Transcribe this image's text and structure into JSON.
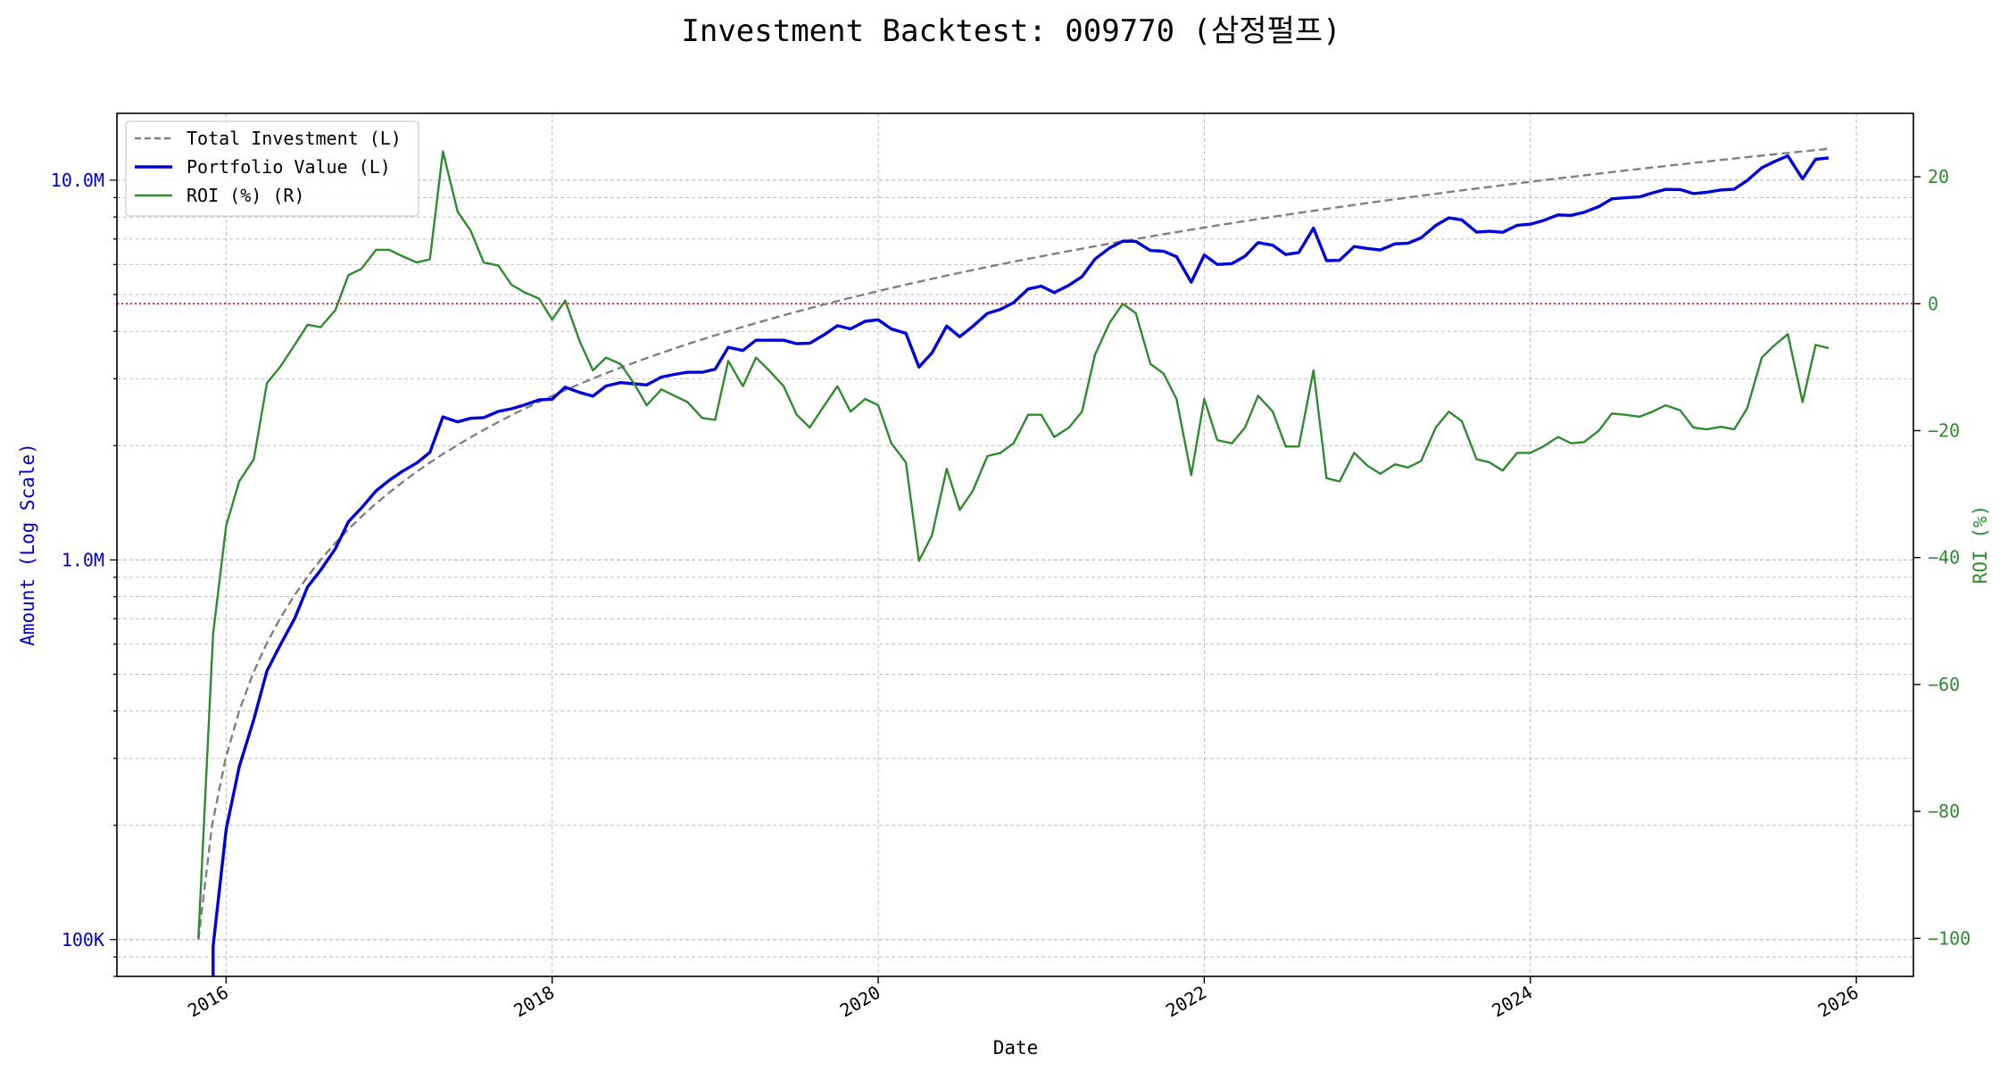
{
  "chart_data": {
    "type": "line",
    "title": "Investment Backtest: 009770 (삼정펄프)",
    "xlabel": "Date",
    "ylabel_left": "Amount (Log Scale)",
    "ylabel_right": "ROI (%)",
    "y_left_scale": "log",
    "y_left_lim": [
      80000,
      15000000
    ],
    "y_left_ticks": [
      {
        "value": 100000,
        "label": "100K"
      },
      {
        "value": 1000000,
        "label": "1.0M"
      },
      {
        "value": 10000000,
        "label": "10.0M"
      }
    ],
    "y_right_lim": [
      -106,
      30
    ],
    "y_right_ticks": [
      {
        "value": 20,
        "label": "20"
      },
      {
        "value": 0,
        "label": "0"
      },
      {
        "value": -20,
        "label": "−20"
      },
      {
        "value": -40,
        "label": "−40"
      },
      {
        "value": -60,
        "label": "−60"
      },
      {
        "value": -80,
        "label": "−80"
      },
      {
        "value": -100,
        "label": "−100"
      }
    ],
    "x_lim": [
      2015.33,
      2026.35
    ],
    "x_ticks": [
      {
        "value": 2016,
        "label": "2016"
      },
      {
        "value": 2018,
        "label": "2018"
      },
      {
        "value": 2020,
        "label": "2020"
      },
      {
        "value": 2022,
        "label": "2022"
      },
      {
        "value": 2024,
        "label": "2024"
      },
      {
        "value": 2026,
        "label": "2026"
      }
    ],
    "grid": true,
    "legend_position": "upper-left",
    "reference_line": {
      "axis": "right",
      "value": 0,
      "color": "#cc0000",
      "style": "dotted"
    },
    "series": [
      {
        "name": "Total Investment (L)",
        "axis": "left",
        "color": "#808080",
        "style": "dashed",
        "x_start": 2015.83,
        "x_end": 2025.83,
        "monthly_amount": 100000
      },
      {
        "name": "Portfolio Value (L)",
        "axis": "left",
        "color": "#0000dd",
        "style": "solid",
        "points": [
          [
            2015.92,
            70000
          ],
          [
            2015.92,
            96000
          ],
          [
            2016.0,
            195000
          ],
          [
            2016.08,
            285000
          ],
          [
            2016.17,
            380000
          ],
          [
            2016.25,
            510000
          ],
          [
            2016.33,
            595000
          ],
          [
            2016.42,
            700000
          ],
          [
            2016.5,
            850000
          ],
          [
            2016.58,
            940000
          ],
          [
            2016.67,
            1070000
          ],
          [
            2016.75,
            1260000
          ],
          [
            2016.83,
            1370000
          ],
          [
            2016.92,
            1520000
          ],
          [
            2017.0,
            1620000
          ],
          [
            2017.08,
            1710000
          ],
          [
            2017.17,
            1800000
          ],
          [
            2017.25,
            1920000
          ],
          [
            2017.33,
            2380000
          ],
          [
            2017.42,
            2310000
          ],
          [
            2017.5,
            2360000
          ],
          [
            2017.58,
            2370000
          ],
          [
            2017.67,
            2460000
          ],
          [
            2017.75,
            2500000
          ],
          [
            2017.83,
            2560000
          ],
          [
            2017.92,
            2640000
          ],
          [
            2018.0,
            2650000
          ],
          [
            2018.08,
            2850000
          ],
          [
            2018.17,
            2760000
          ],
          [
            2018.25,
            2700000
          ],
          [
            2018.33,
            2870000
          ],
          [
            2018.42,
            2930000
          ],
          [
            2018.5,
            2910000
          ],
          [
            2018.58,
            2890000
          ],
          [
            2018.67,
            3030000
          ],
          [
            2018.75,
            3080000
          ],
          [
            2018.83,
            3120000
          ],
          [
            2018.92,
            3120000
          ],
          [
            2019.0,
            3180000
          ],
          [
            2019.08,
            3630000
          ],
          [
            2019.17,
            3560000
          ],
          [
            2019.25,
            3790000
          ],
          [
            2019.33,
            3790000
          ],
          [
            2019.42,
            3790000
          ],
          [
            2019.5,
            3710000
          ],
          [
            2019.58,
            3720000
          ],
          [
            2019.67,
            3920000
          ],
          [
            2019.75,
            4140000
          ],
          [
            2019.83,
            4060000
          ],
          [
            2019.92,
            4250000
          ],
          [
            2020.0,
            4290000
          ],
          [
            2020.08,
            4060000
          ],
          [
            2020.17,
            3950000
          ],
          [
            2020.25,
            3220000
          ],
          [
            2020.33,
            3510000
          ],
          [
            2020.42,
            4130000
          ],
          [
            2020.5,
            3870000
          ],
          [
            2020.58,
            4120000
          ],
          [
            2020.67,
            4460000
          ],
          [
            2020.75,
            4570000
          ],
          [
            2020.83,
            4760000
          ],
          [
            2020.92,
            5170000
          ],
          [
            2021.0,
            5260000
          ],
          [
            2021.08,
            5060000
          ],
          [
            2021.17,
            5290000
          ],
          [
            2021.25,
            5570000
          ],
          [
            2021.33,
            6200000
          ],
          [
            2021.42,
            6630000
          ],
          [
            2021.5,
            6910000
          ],
          [
            2021.58,
            6900000
          ],
          [
            2021.67,
            6530000
          ],
          [
            2021.75,
            6500000
          ],
          [
            2021.83,
            6290000
          ],
          [
            2021.92,
            5390000
          ],
          [
            2022.0,
            6350000
          ],
          [
            2022.08,
            6000000
          ],
          [
            2022.17,
            6030000
          ],
          [
            2022.25,
            6310000
          ],
          [
            2022.33,
            6850000
          ],
          [
            2022.42,
            6740000
          ],
          [
            2022.5,
            6370000
          ],
          [
            2022.58,
            6450000
          ],
          [
            2022.67,
            7480000
          ],
          [
            2022.75,
            6140000
          ],
          [
            2022.83,
            6150000
          ],
          [
            2022.92,
            6690000
          ],
          [
            2023.0,
            6610000
          ],
          [
            2023.08,
            6550000
          ],
          [
            2023.17,
            6800000
          ],
          [
            2023.25,
            6820000
          ],
          [
            2023.33,
            7050000
          ],
          [
            2023.42,
            7600000
          ],
          [
            2023.5,
            7960000
          ],
          [
            2023.58,
            7860000
          ],
          [
            2023.67,
            7300000
          ],
          [
            2023.75,
            7340000
          ],
          [
            2023.83,
            7290000
          ],
          [
            2023.92,
            7610000
          ],
          [
            2024.0,
            7660000
          ],
          [
            2024.08,
            7830000
          ],
          [
            2024.17,
            8100000
          ],
          [
            2024.25,
            8080000
          ],
          [
            2024.33,
            8230000
          ],
          [
            2024.42,
            8520000
          ],
          [
            2024.5,
            8930000
          ],
          [
            2024.58,
            8990000
          ],
          [
            2024.67,
            9040000
          ],
          [
            2024.75,
            9260000
          ],
          [
            2024.83,
            9460000
          ],
          [
            2024.92,
            9450000
          ],
          [
            2025.0,
            9220000
          ],
          [
            2025.08,
            9290000
          ],
          [
            2025.17,
            9430000
          ],
          [
            2025.25,
            9470000
          ],
          [
            2025.33,
            9980000
          ],
          [
            2025.42,
            10780000
          ],
          [
            2025.5,
            11210000
          ],
          [
            2025.58,
            11590000
          ],
          [
            2025.67,
            10080000
          ],
          [
            2025.75,
            11350000
          ],
          [
            2025.83,
            11450000
          ]
        ]
      },
      {
        "name": "ROI (%) (R)",
        "axis": "right",
        "color": "#2e8b2e",
        "style": "solid",
        "points": [
          [
            2015.83,
            -100
          ],
          [
            2015.92,
            -52
          ],
          [
            2016.0,
            -35
          ],
          [
            2016.08,
            -28
          ],
          [
            2016.17,
            -24.5
          ],
          [
            2016.25,
            -12.5
          ],
          [
            2016.33,
            -10
          ],
          [
            2016.42,
            -6.5
          ],
          [
            2016.5,
            -3.3
          ],
          [
            2016.58,
            -3.7
          ],
          [
            2016.67,
            -1
          ],
          [
            2016.75,
            4.5
          ],
          [
            2016.83,
            5.5
          ],
          [
            2016.92,
            8.5
          ],
          [
            2017.0,
            8.5
          ],
          [
            2017.08,
            7.5
          ],
          [
            2017.17,
            6.5
          ],
          [
            2017.25,
            7
          ],
          [
            2017.33,
            24
          ],
          [
            2017.42,
            14.5
          ],
          [
            2017.5,
            11.5
          ],
          [
            2017.58,
            6.5
          ],
          [
            2017.67,
            6
          ],
          [
            2017.75,
            3
          ],
          [
            2017.83,
            1.8
          ],
          [
            2017.92,
            0.8
          ],
          [
            2018.0,
            -2.5
          ],
          [
            2018.08,
            0.5
          ],
          [
            2018.17,
            -6
          ],
          [
            2018.25,
            -10.5
          ],
          [
            2018.33,
            -8.5
          ],
          [
            2018.42,
            -9.5
          ],
          [
            2018.5,
            -12.5
          ],
          [
            2018.58,
            -16
          ],
          [
            2018.67,
            -13.5
          ],
          [
            2018.75,
            -14.5
          ],
          [
            2018.83,
            -15.5
          ],
          [
            2018.92,
            -18
          ],
          [
            2019.0,
            -18.3
          ],
          [
            2019.08,
            -9
          ],
          [
            2019.17,
            -13
          ],
          [
            2019.25,
            -8.5
          ],
          [
            2019.33,
            -10.5
          ],
          [
            2019.42,
            -13
          ],
          [
            2019.5,
            -17.5
          ],
          [
            2019.58,
            -19.5
          ],
          [
            2019.67,
            -16
          ],
          [
            2019.75,
            -13
          ],
          [
            2019.83,
            -17
          ],
          [
            2019.92,
            -15
          ],
          [
            2020.0,
            -16
          ],
          [
            2020.08,
            -22
          ],
          [
            2020.17,
            -25
          ],
          [
            2020.25,
            -40.5
          ],
          [
            2020.33,
            -36.5
          ],
          [
            2020.42,
            -26
          ],
          [
            2020.5,
            -32.5
          ],
          [
            2020.58,
            -29.5
          ],
          [
            2020.67,
            -24
          ],
          [
            2020.75,
            -23.5
          ],
          [
            2020.83,
            -22
          ],
          [
            2020.92,
            -17.5
          ],
          [
            2021.0,
            -17.5
          ],
          [
            2021.08,
            -21
          ],
          [
            2021.17,
            -19.5
          ],
          [
            2021.25,
            -17
          ],
          [
            2021.33,
            -8
          ],
          [
            2021.42,
            -3
          ],
          [
            2021.5,
            0
          ],
          [
            2021.58,
            -1.5
          ],
          [
            2021.67,
            -9.5
          ],
          [
            2021.75,
            -11
          ],
          [
            2021.83,
            -15
          ],
          [
            2021.92,
            -27
          ],
          [
            2022.0,
            -15
          ],
          [
            2022.08,
            -21.5
          ],
          [
            2022.17,
            -22
          ],
          [
            2022.25,
            -19.5
          ],
          [
            2022.33,
            -14.5
          ],
          [
            2022.42,
            -17
          ],
          [
            2022.5,
            -22.5
          ],
          [
            2022.58,
            -22.5
          ],
          [
            2022.67,
            -10.5
          ],
          [
            2022.75,
            -27.5
          ],
          [
            2022.83,
            -28
          ],
          [
            2022.92,
            -23.5
          ],
          [
            2023.0,
            -25.5
          ],
          [
            2023.08,
            -26.8
          ],
          [
            2023.17,
            -25.3
          ],
          [
            2023.25,
            -25.8
          ],
          [
            2023.33,
            -24.8
          ],
          [
            2023.42,
            -19.5
          ],
          [
            2023.5,
            -17
          ],
          [
            2023.58,
            -18.5
          ],
          [
            2023.67,
            -24.5
          ],
          [
            2023.75,
            -25
          ],
          [
            2023.83,
            -26.3
          ],
          [
            2023.92,
            -23.5
          ],
          [
            2024.0,
            -23.5
          ],
          [
            2024.08,
            -22.5
          ],
          [
            2024.17,
            -21
          ],
          [
            2024.25,
            -22
          ],
          [
            2024.33,
            -21.8
          ],
          [
            2024.42,
            -20
          ],
          [
            2024.5,
            -17.3
          ],
          [
            2024.58,
            -17.5
          ],
          [
            2024.67,
            -17.8
          ],
          [
            2024.75,
            -17
          ],
          [
            2024.83,
            -16
          ],
          [
            2024.92,
            -16.8
          ],
          [
            2025.0,
            -19.5
          ],
          [
            2025.08,
            -19.8
          ],
          [
            2025.17,
            -19.4
          ],
          [
            2025.25,
            -19.8
          ],
          [
            2025.33,
            -16.5
          ],
          [
            2025.42,
            -8.5
          ],
          [
            2025.5,
            -6.5
          ],
          [
            2025.58,
            -4.8
          ],
          [
            2025.67,
            -15.5
          ],
          [
            2025.75,
            -6.5
          ],
          [
            2025.83,
            -7
          ]
        ]
      }
    ]
  }
}
